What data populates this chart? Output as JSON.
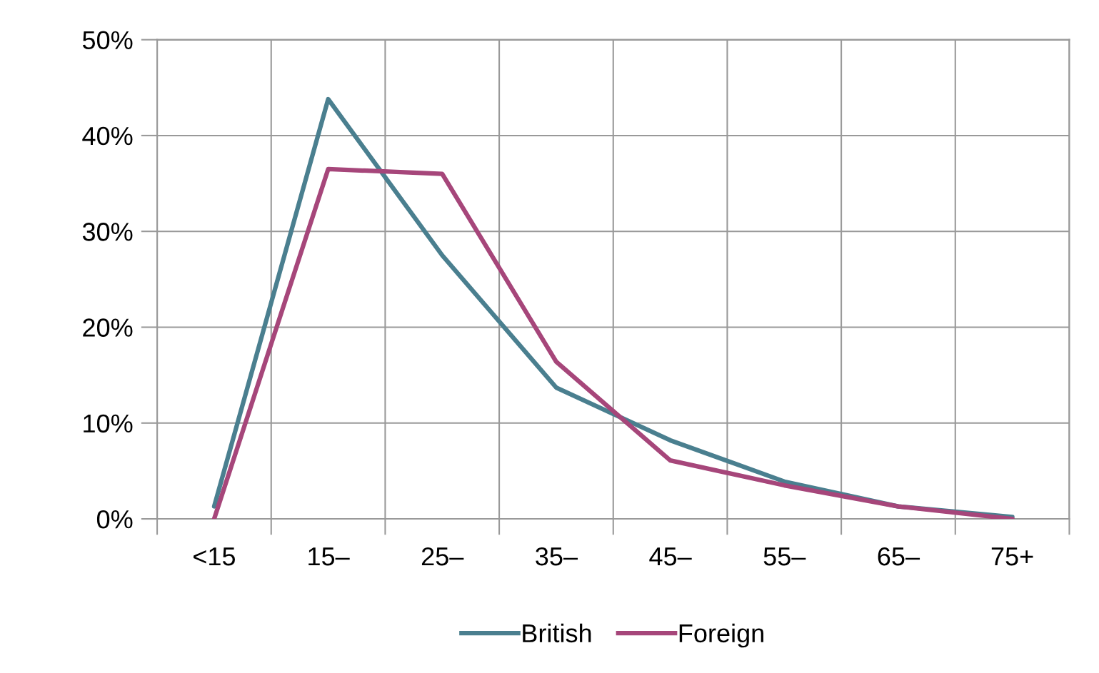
{
  "chart_data": {
    "type": "line",
    "categories": [
      "<15",
      "15–",
      "25–",
      "35–",
      "45–",
      "55–",
      "65–",
      "75+"
    ],
    "series": [
      {
        "name": "British",
        "color": "#4a7f8f",
        "values": [
          1.3,
          43.8,
          27.5,
          13.7,
          8.2,
          3.9,
          1.3,
          0.2
        ]
      },
      {
        "name": "Foreign",
        "color": "#a6467a",
        "values": [
          0,
          36.5,
          36.0,
          16.4,
          6.1,
          3.5,
          1.3,
          0
        ]
      }
    ],
    "ylim": [
      0,
      50
    ],
    "yticks": [
      {
        "value": 0,
        "label": "0%"
      },
      {
        "value": 10,
        "label": "10%"
      },
      {
        "value": 20,
        "label": "20%"
      },
      {
        "value": 30,
        "label": "30%"
      },
      {
        "value": 40,
        "label": "40%"
      },
      {
        "value": 50,
        "label": "50%"
      }
    ],
    "grid": true,
    "legend": "bottom",
    "marker": "none",
    "line_style": "solid"
  }
}
